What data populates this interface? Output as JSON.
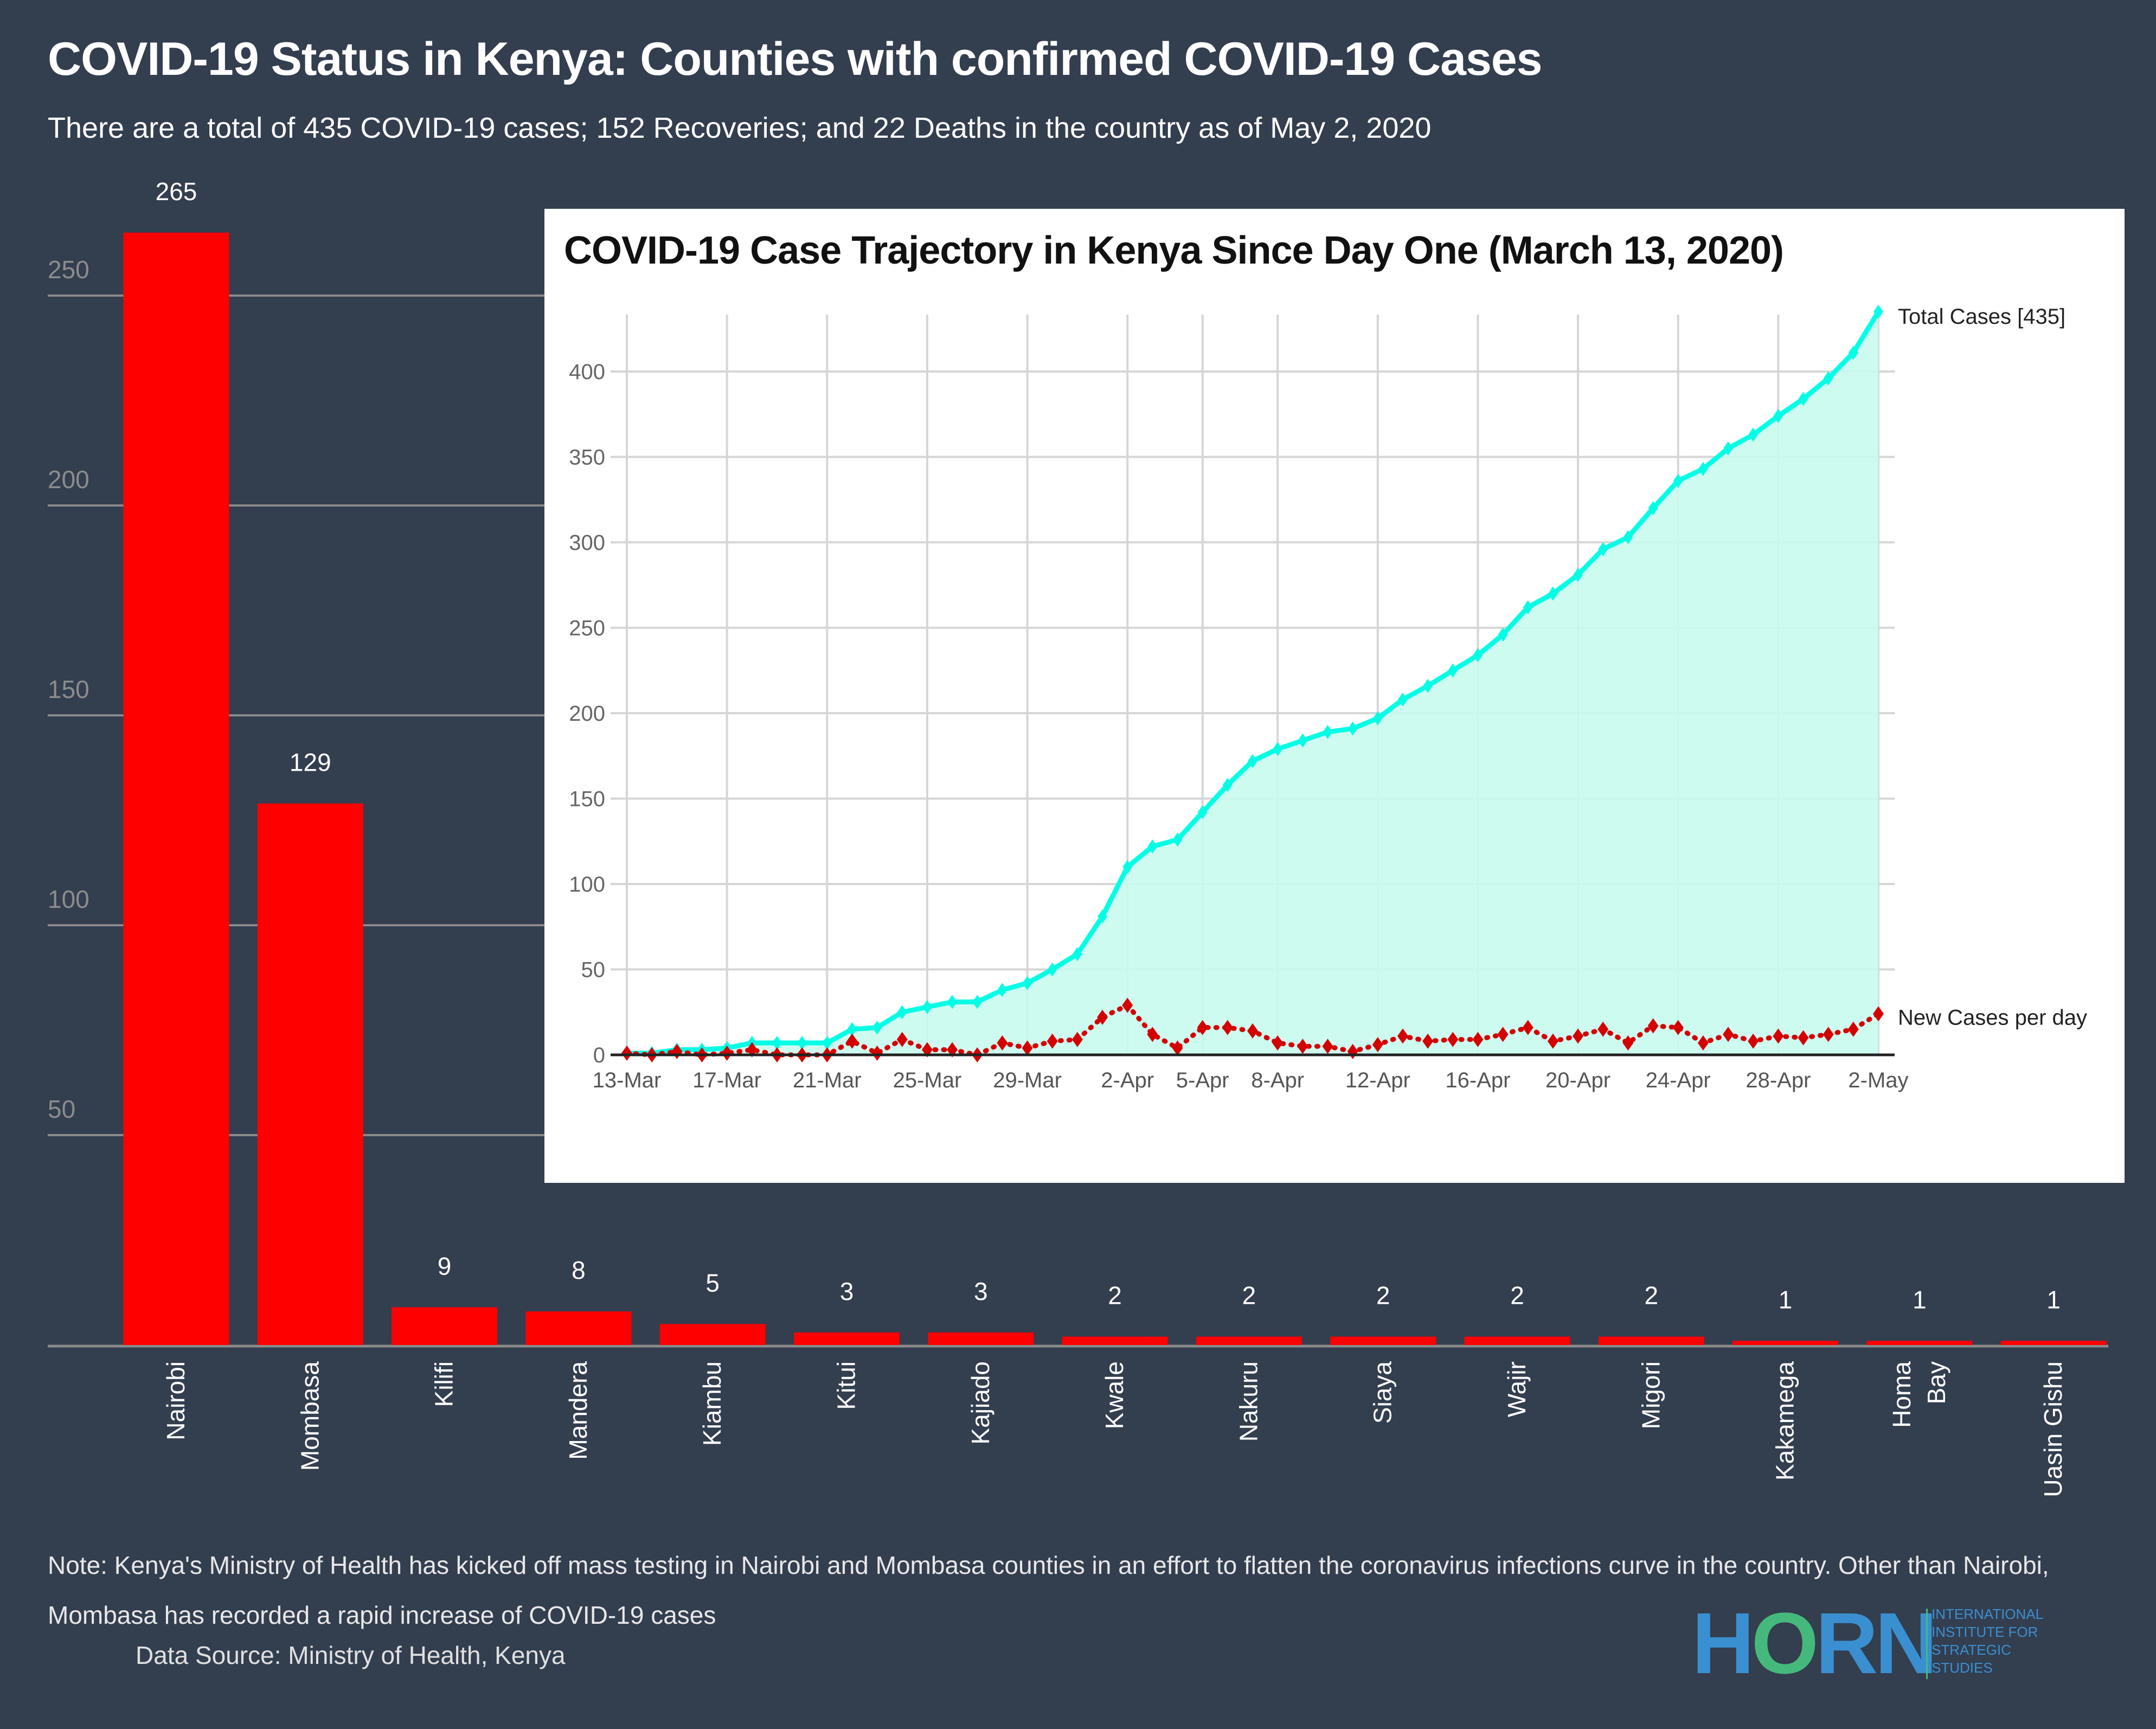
{
  "title": "COVID-19 Status in Kenya: Counties with confirmed COVID-19 Cases",
  "subtitle": "There are a total of 435 COVID-19 cases; 152 Recoveries; and 22 Deaths in the country as of May 2, 2020",
  "note": "Note: Kenya's Ministry of Health has kicked off mass testing in Nairobi and Mombasa counties in an effort to flatten the coronavirus infections curve in the country. Other than Nairobi, Mombasa has recorded a rapid increase of COVID-19 cases",
  "source": "Data Source: Ministry of Health, Kenya",
  "logo": {
    "wordmark_left": "H",
    "wordmark_o": "O",
    "wordmark_right": "RN",
    "lines": [
      "INTERNATIONAL",
      "INSTITUTE FOR",
      "STRATEGIC",
      "STUDIES"
    ]
  },
  "colors": {
    "background": "#333e4f",
    "bar": "#ff0000",
    "total_line": "#00ffe5",
    "total_fill": "#c8fbee",
    "new_cases": "#d40000"
  },
  "chart_data": [
    {
      "type": "bar",
      "title": "COVID-19 Status in Kenya: Counties with confirmed COVID-19 Cases",
      "xlabel": "",
      "ylabel": "",
      "categories": [
        "Nairobi",
        "Mombasa",
        "Kilifi",
        "Mandera",
        "Kiambu",
        "Kitui",
        "Kajiado",
        "Kwale",
        "Nakuru",
        "Siaya",
        "Wajir",
        "Migori",
        "Kakamega",
        "Homa Bay",
        "Uasin Gishu"
      ],
      "values": [
        265,
        129,
        9,
        8,
        5,
        3,
        3,
        2,
        2,
        2,
        2,
        2,
        1,
        1,
        1
      ],
      "yticks": [
        50,
        100,
        150,
        200,
        250
      ],
      "ylim": [
        0,
        270
      ],
      "grid": true,
      "data_labels": true
    },
    {
      "type": "line",
      "title": "COVID-19 Case Trajectory in Kenya Since Day One (March 13, 2020)",
      "x": [
        "13-Mar",
        "14-Mar",
        "15-Mar",
        "16-Mar",
        "17-Mar",
        "18-Mar",
        "19-Mar",
        "20-Mar",
        "21-Mar",
        "22-Mar",
        "23-Mar",
        "24-Mar",
        "25-Mar",
        "26-Mar",
        "27-Mar",
        "28-Mar",
        "29-Mar",
        "30-Mar",
        "31-Mar",
        "1-Apr",
        "2-Apr",
        "3-Apr",
        "4-Apr",
        "5-Apr",
        "6-Apr",
        "7-Apr",
        "8-Apr",
        "9-Apr",
        "10-Apr",
        "11-Apr",
        "12-Apr",
        "13-Apr",
        "14-Apr",
        "15-Apr",
        "16-Apr",
        "17-Apr",
        "18-Apr",
        "19-Apr",
        "20-Apr",
        "21-Apr",
        "22-Apr",
        "23-Apr",
        "24-Apr",
        "25-Apr",
        "26-Apr",
        "27-Apr",
        "28-Apr",
        "29-Apr",
        "30-Apr",
        "1-May",
        "2-May"
      ],
      "xticks": [
        "13-Mar",
        "17-Mar",
        "21-Mar",
        "25-Mar",
        "29-Mar",
        "2-Apr",
        "5-Apr",
        "8-Apr",
        "12-Apr",
        "16-Apr",
        "20-Apr",
        "24-Apr",
        "28-Apr",
        "2-May"
      ],
      "yticks": [
        0,
        50,
        100,
        150,
        200,
        250,
        300,
        350,
        400
      ],
      "ylim": [
        0,
        435
      ],
      "grid": true,
      "series": [
        {
          "name": "Total Cases [435]",
          "style": "area",
          "values": [
            1,
            1,
            3,
            3,
            4,
            7,
            7,
            7,
            7,
            15,
            16,
            25,
            28,
            31,
            31,
            38,
            42,
            50,
            59,
            81,
            110,
            122,
            126,
            142,
            158,
            172,
            179,
            184,
            189,
            191,
            197,
            208,
            216,
            225,
            234,
            246,
            262,
            270,
            281,
            296,
            303,
            320,
            336,
            343,
            355,
            363,
            374,
            384,
            396,
            411,
            435
          ]
        },
        {
          "name": "New Cases per day",
          "style": "dotted",
          "values": [
            1,
            0,
            2,
            0,
            1,
            3,
            0,
            0,
            0,
            8,
            1,
            9,
            3,
            3,
            0,
            7,
            4,
            8,
            9,
            22,
            29,
            12,
            4,
            16,
            16,
            14,
            7,
            5,
            5,
            2,
            6,
            11,
            8,
            9,
            9,
            12,
            16,
            8,
            11,
            15,
            7,
            17,
            16,
            7,
            12,
            8,
            11,
            10,
            12,
            15,
            24
          ]
        }
      ]
    }
  ]
}
